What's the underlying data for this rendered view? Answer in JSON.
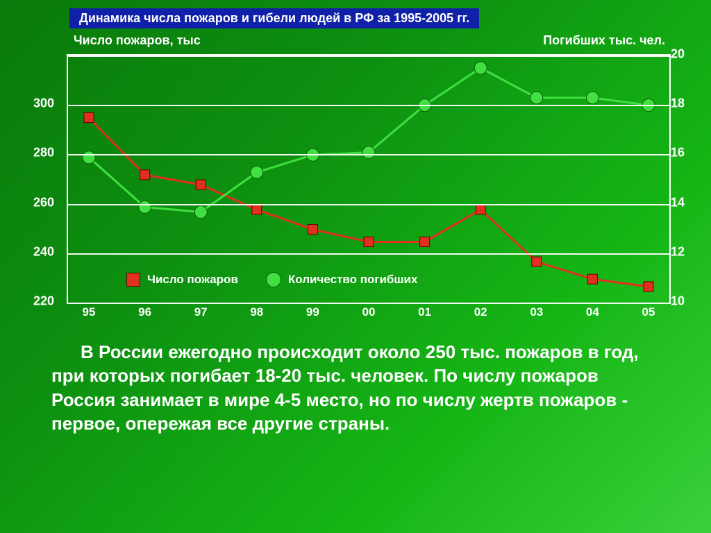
{
  "title": "Динамика числа пожаров и гибели людей в РФ за 1995-2005 гг.",
  "chart": {
    "type": "line",
    "background_gradient": [
      "#0a7a0a",
      "#0d9010",
      "#15b515",
      "#3ad03a"
    ],
    "title_bg": "#1020a8",
    "title_color": "#ffffff",
    "grid_color": "#ffffff",
    "axis_left": {
      "title": "Число пожаров, тыс",
      "min": 220,
      "max": 320,
      "ticks": [
        220,
        240,
        260,
        280,
        300
      ]
    },
    "axis_right": {
      "title": "Погибших тыс. чел.",
      "min": 10,
      "max": 20,
      "ticks": [
        10,
        12,
        14,
        16,
        18,
        20
      ]
    },
    "x_categories": [
      "95",
      "96",
      "97",
      "98",
      "99",
      "00",
      "01",
      "02",
      "03",
      "04",
      "05"
    ],
    "series": [
      {
        "name": "Число пожаров",
        "axis": "left",
        "color": "#e03020",
        "marker": "square",
        "marker_size": 14,
        "line_width": 3,
        "values": [
          295,
          272,
          268,
          258,
          250,
          245,
          245,
          258,
          237,
          230,
          227
        ]
      },
      {
        "name": "Количество погибших",
        "axis": "right",
        "color": "#40e040",
        "marker": "circle",
        "marker_size": 18,
        "line_width": 3,
        "values": [
          15.9,
          13.9,
          13.7,
          15.3,
          16.0,
          16.1,
          18.0,
          19.5,
          18.3,
          18.3,
          18.0
        ]
      }
    ],
    "legend": [
      "Число пожаров",
      "Количество погибших"
    ],
    "label_fontsize": 18,
    "tick_fontsize": 18
  },
  "body_text": "В  России ежегодно происходит около 250 тыс. пожаров в год, при которых погибает 18-20 тыс. человек. По числу пожаров Россия занимает в мире 4-5 место, но по числу жертв пожаров - первое, опережая все другие страны.",
  "text_color": "#ffffff",
  "text_fontsize": 26
}
